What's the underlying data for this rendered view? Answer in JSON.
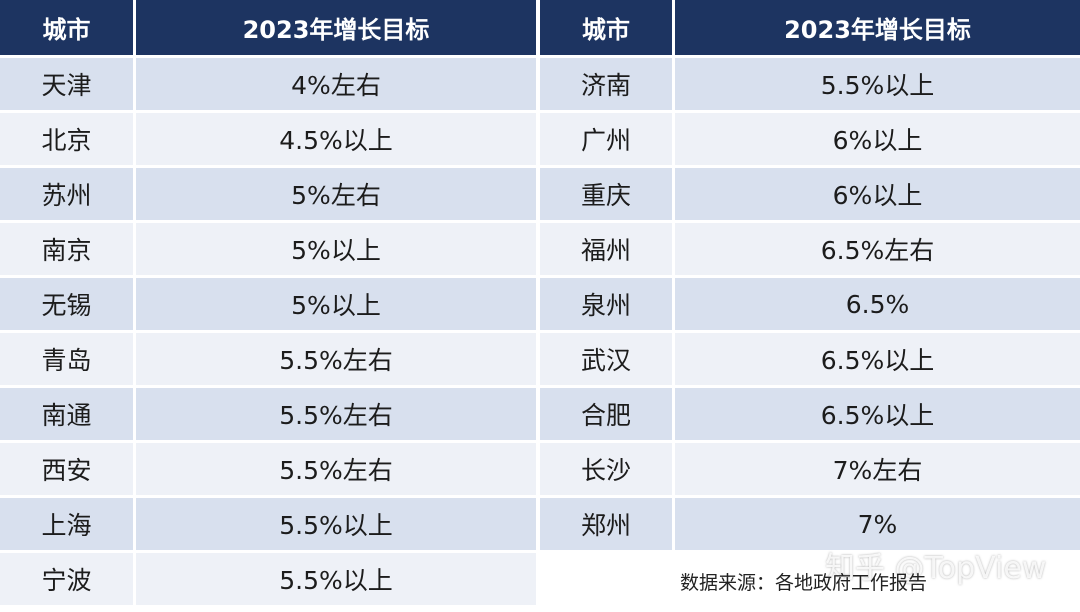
{
  "headers": {
    "city": "城市",
    "target": "2023年增长目标"
  },
  "left_rows": [
    {
      "city": "天津",
      "target": "4%左右"
    },
    {
      "city": "北京",
      "target": "4.5%以上"
    },
    {
      "city": "苏州",
      "target": "5%左右"
    },
    {
      "city": "南京",
      "target": "5%以上"
    },
    {
      "city": "无锡",
      "target": "5%以上"
    },
    {
      "city": "青岛",
      "target": "5.5%左右"
    },
    {
      "city": "南通",
      "target": "5.5%左右"
    },
    {
      "city": "西安",
      "target": "5.5%左右"
    },
    {
      "city": "上海",
      "target": "5.5%以上"
    },
    {
      "city": "宁波",
      "target": "5.5%以上"
    }
  ],
  "right_rows": [
    {
      "city": "济南",
      "target": "5.5%以上"
    },
    {
      "city": "广州",
      "target": "6%以上"
    },
    {
      "city": "重庆",
      "target": "6%以上"
    },
    {
      "city": "福州",
      "target": "6.5%左右"
    },
    {
      "city": "泉州",
      "target": "6.5%"
    },
    {
      "city": "武汉",
      "target": "6.5%以上"
    },
    {
      "city": "合肥",
      "target": "6.5%以上"
    },
    {
      "city": "长沙",
      "target": "7%左右"
    },
    {
      "city": "郑州",
      "target": "7%"
    }
  ],
  "source_note": "数据来源：各地政府工作报告",
  "watermark": "知乎 @TopView",
  "colors": {
    "header_bg": "#1d3461",
    "row_odd": "#d8e0ee",
    "row_even": "#eef1f7"
  }
}
